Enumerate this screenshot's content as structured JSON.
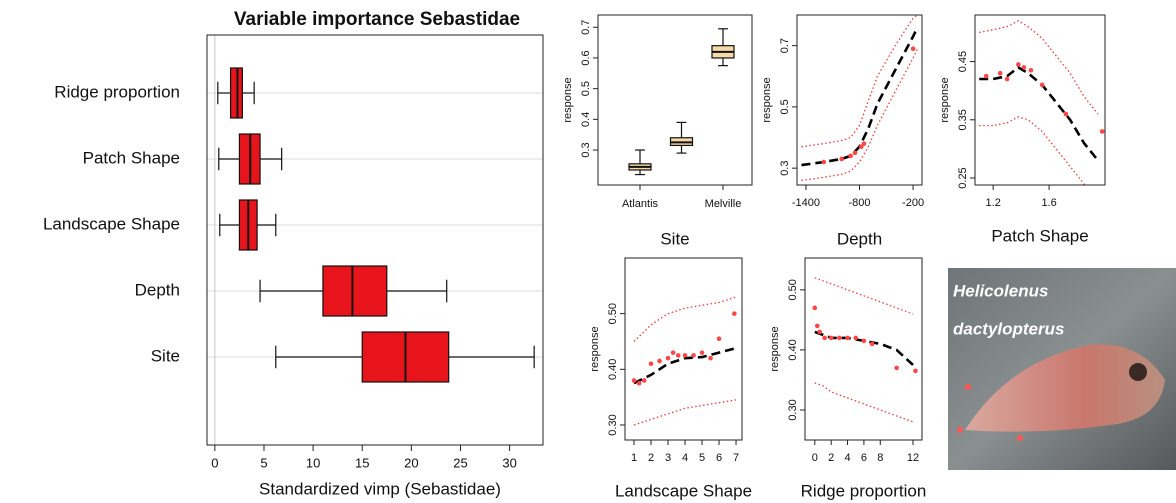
{
  "chart_data": [
    {
      "type": "box",
      "orientation": "horizontal",
      "title": "Variable importance Sebastidae",
      "categories": [
        "Ridge proportion",
        "Patch Shape",
        "Landscape Shape",
        "Depth",
        "Site"
      ],
      "boxes": [
        {
          "min": 0.3,
          "q1": 1.6,
          "median": 2.3,
          "q3": 2.8,
          "max": 4.0
        },
        {
          "min": 0.4,
          "q1": 2.5,
          "median": 3.6,
          "q3": 4.6,
          "max": 6.8
        },
        {
          "min": 0.5,
          "q1": 2.5,
          "median": 3.4,
          "q3": 4.3,
          "max": 6.2
        },
        {
          "min": 4.6,
          "q1": 11.0,
          "median": 14.0,
          "q3": 17.5,
          "max": 23.6
        },
        {
          "min": 6.2,
          "q1": 15.0,
          "median": 19.4,
          "q3": 23.8,
          "max": 32.5
        }
      ],
      "color": "#e8141b",
      "xlabel": "Standardized vimp (Sebastidae)",
      "xlim": [
        -0.8,
        33.4
      ],
      "xticks": [
        0,
        5,
        10,
        15,
        20,
        25,
        30
      ]
    },
    {
      "type": "box",
      "orientation": "vertical",
      "xlabel": "Site",
      "ylabel": "response",
      "categories": [
        "Atlantis",
        null,
        "Melville"
      ],
      "boxes": [
        {
          "min": 0.22,
          "q1": 0.235,
          "median": 0.245,
          "q3": 0.255,
          "max": 0.3
        },
        {
          "min": 0.29,
          "q1": 0.315,
          "median": 0.325,
          "q3": 0.34,
          "max": 0.39
        },
        {
          "min": 0.575,
          "q1": 0.6,
          "median": 0.62,
          "q3": 0.64,
          "max": 0.695
        }
      ],
      "color": "#f5d9a8",
      "ylim": [
        0.186,
        0.74
      ],
      "yticks": [
        0.3,
        0.4,
        0.5,
        0.6,
        0.7
      ]
    },
    {
      "type": "line",
      "xlabel": "Depth",
      "ylabel": "response",
      "x": [
        -1450,
        -1200,
        -1000,
        -900,
        -800,
        -700,
        -600,
        -400,
        -200,
        -150
      ],
      "series": [
        {
          "color": "#000000",
          "style": "dashed",
          "values": [
            0.31,
            0.32,
            0.33,
            0.34,
            0.37,
            0.43,
            0.51,
            0.62,
            0.73,
            0.76
          ]
        },
        {
          "color": "#ff3333",
          "style": "dotted",
          "values": [
            0.37,
            0.38,
            0.39,
            0.4,
            0.44,
            0.52,
            0.6,
            0.7,
            0.79,
            0.8
          ]
        },
        {
          "color": "#ff3333",
          "style": "dotted",
          "values": [
            0.26,
            0.27,
            0.28,
            0.29,
            0.32,
            0.37,
            0.44,
            0.55,
            0.66,
            0.69
          ]
        }
      ],
      "points": {
        "color": "#ff4444",
        "x": [
          -1200,
          -1000,
          -900,
          -850,
          -780,
          -750,
          -200
        ],
        "y": [
          0.32,
          0.33,
          0.34,
          0.35,
          0.37,
          0.38,
          0.69
        ]
      },
      "xlim": [
        -1500,
        -100
      ],
      "xticks": [
        -1400,
        -800,
        -200
      ],
      "ylim": [
        0.245,
        0.8
      ],
      "yticks": [
        0.3,
        0.5,
        0.7
      ]
    },
    {
      "type": "line",
      "xlabel": "Patch Shape",
      "ylabel": "response",
      "x": [
        1.1,
        1.2,
        1.3,
        1.38,
        1.45,
        1.55,
        1.65,
        1.75,
        1.85,
        1.95
      ],
      "series": [
        {
          "color": "#000000",
          "style": "dashed",
          "values": [
            0.42,
            0.42,
            0.425,
            0.44,
            0.43,
            0.41,
            0.38,
            0.35,
            0.31,
            0.28
          ]
        },
        {
          "color": "#ff3333",
          "style": "dotted",
          "values": [
            0.5,
            0.505,
            0.51,
            0.52,
            0.51,
            0.49,
            0.46,
            0.43,
            0.39,
            0.36
          ]
        },
        {
          "color": "#ff3333",
          "style": "dotted",
          "values": [
            0.34,
            0.34,
            0.345,
            0.355,
            0.35,
            0.33,
            0.3,
            0.27,
            0.24,
            0.2
          ]
        }
      ],
      "points": {
        "color": "#ff4444",
        "x": [
          1.15,
          1.25,
          1.3,
          1.38,
          1.42,
          1.47,
          1.55,
          1.72,
          1.98
        ],
        "y": [
          0.425,
          0.43,
          0.42,
          0.445,
          0.44,
          0.435,
          0.41,
          0.36,
          0.33
        ]
      },
      "xlim": [
        1.07,
        2.0
      ],
      "xticks": [
        1.2,
        1.6
      ],
      "ylim": [
        0.238,
        0.53
      ],
      "yticks": [
        0.25,
        0.35,
        0.45
      ]
    },
    {
      "type": "line",
      "xlabel": "Landscape Shape",
      "ylabel": "response",
      "x": [
        1,
        2,
        3,
        4,
        5,
        6,
        7
      ],
      "series": [
        {
          "color": "#000000",
          "style": "dashed",
          "values": [
            0.375,
            0.39,
            0.41,
            0.42,
            0.422,
            0.43,
            0.438
          ]
        },
        {
          "color": "#ff3333",
          "style": "dotted",
          "values": [
            0.45,
            0.48,
            0.5,
            0.51,
            0.515,
            0.52,
            0.53
          ]
        },
        {
          "color": "#ff3333",
          "style": "dotted",
          "values": [
            0.3,
            0.31,
            0.32,
            0.33,
            0.335,
            0.34,
            0.345
          ]
        }
      ],
      "points": {
        "color": "#ff4444",
        "x": [
          1,
          1.3,
          1.6,
          2,
          2.5,
          3,
          3.3,
          3.6,
          4,
          4.5,
          5,
          5.5,
          6,
          6.9
        ],
        "y": [
          0.38,
          0.375,
          0.38,
          0.41,
          0.415,
          0.42,
          0.43,
          0.425,
          0.425,
          0.425,
          0.43,
          0.42,
          0.455,
          0.5
        ]
      },
      "xlim": [
        0.47,
        7.35
      ],
      "xticks": [
        1,
        2,
        3,
        4,
        5,
        6,
        7
      ],
      "ylim": [
        0.273,
        0.6
      ],
      "yticks": [
        {
          "value": 0.3,
          "label": "0.30"
        },
        {
          "value": 0.4,
          "label": "0.40"
        },
        {
          "value": 0.5,
          "label": "0.50"
        }
      ]
    },
    {
      "type": "line",
      "xlabel": "Ridge proportion",
      "ylabel": "response",
      "x": [
        0,
        1,
        2,
        4,
        6,
        8,
        10,
        12
      ],
      "series": [
        {
          "color": "#000000",
          "style": "dashed",
          "values": [
            0.43,
            0.425,
            0.42,
            0.42,
            0.415,
            0.41,
            0.4,
            0.375
          ]
        },
        {
          "color": "#ff3333",
          "style": "dotted",
          "values": [
            0.52,
            0.515,
            0.51,
            0.5,
            0.49,
            0.48,
            0.47,
            0.46
          ]
        },
        {
          "color": "#ff3333",
          "style": "dotted",
          "values": [
            0.345,
            0.34,
            0.33,
            0.32,
            0.31,
            0.3,
            0.29,
            0.28
          ]
        }
      ],
      "points": {
        "color": "#ff4444",
        "x": [
          0,
          0.3,
          0.6,
          1.2,
          2,
          3,
          4,
          5,
          6,
          7,
          10,
          12.3
        ],
        "y": [
          0.47,
          0.44,
          0.43,
          0.42,
          0.42,
          0.42,
          0.42,
          0.42,
          0.415,
          0.41,
          0.37,
          0.365
        ]
      },
      "xlim": [
        -1.2,
        13.1
      ],
      "xticks": [
        0,
        2,
        4,
        6,
        8,
        12
      ],
      "ylim": [
        0.25,
        0.553
      ],
      "yticks": [
        {
          "value": 0.3,
          "label": "0.30"
        },
        {
          "value": 0.4,
          "label": "0.40"
        },
        {
          "value": 0.5,
          "label": "0.50"
        }
      ]
    }
  ],
  "photo": {
    "caption_lines": [
      "Helicolenus",
      "dactylopterus"
    ]
  }
}
